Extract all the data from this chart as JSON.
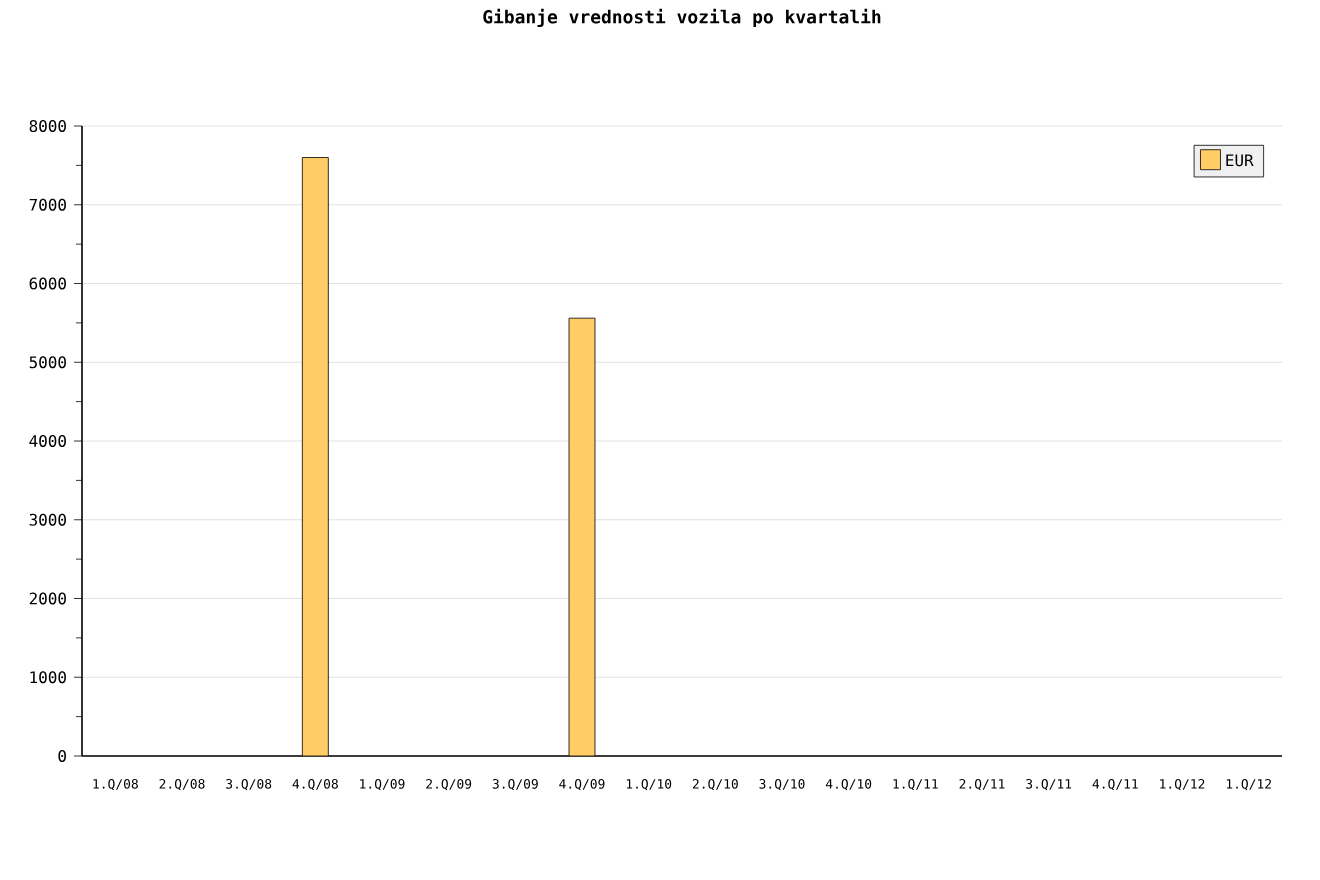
{
  "chart_data": {
    "type": "bar",
    "title": "Gibanje vrednosti vozila po kvartalih",
    "categories": [
      "1.Q/08",
      "2.Q/08",
      "3.Q/08",
      "4.Q/08",
      "1.Q/09",
      "2.Q/09",
      "3.Q/09",
      "4.Q/09",
      "1.Q/10",
      "2.Q/10",
      "3.Q/10",
      "4.Q/10",
      "1.Q/11",
      "2.Q/11",
      "3.Q/11",
      "4.Q/11",
      "1.Q/12",
      "1.Q/12"
    ],
    "series": [
      {
        "name": "EUR",
        "color": "#ffcc66",
        "values": [
          null,
          null,
          null,
          7600,
          null,
          null,
          null,
          5560,
          null,
          null,
          null,
          null,
          null,
          null,
          null,
          null,
          null,
          null
        ]
      }
    ],
    "ylim": [
      0,
      8000
    ],
    "yticks": [
      0,
      1000,
      2000,
      3000,
      4000,
      5000,
      6000,
      7000,
      8000
    ],
    "grid": "y",
    "legend": "top right"
  }
}
